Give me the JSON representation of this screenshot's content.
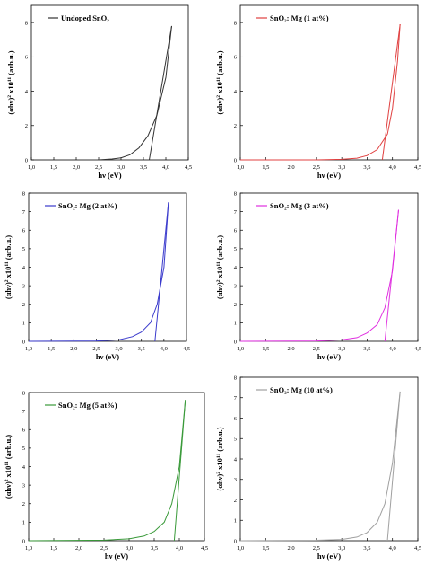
{
  "figure": {
    "ylabel_prefix": "(αhν)",
    "ylabel_sup1": "2",
    "ylabel_mid": " x10",
    "ylabel_sup2": "11",
    "ylabel_suffix": " (arb.u.)",
    "xlabel": "hν (eV)"
  },
  "chart_data": [
    {
      "type": "line",
      "legend": "Undoped SnO₂",
      "color": "#333333",
      "xlim": [
        1.0,
        4.5
      ],
      "ylim": [
        0,
        9
      ],
      "xticks": [
        "1,0",
        "1,5",
        "2,0",
        "2,5",
        "3,0",
        "3,5",
        "4,0",
        "4,5"
      ],
      "yticks": [
        "0",
        "2",
        "4",
        "6",
        "8"
      ],
      "curve": {
        "x": [
          2.5,
          2.8,
          3.0,
          3.2,
          3.4,
          3.6,
          3.8,
          4.0,
          4.13
        ],
        "y": [
          0.0,
          0.05,
          0.12,
          0.3,
          0.7,
          1.4,
          2.6,
          4.8,
          7.8
        ]
      },
      "fit": {
        "x": [
          3.63,
          4.13
        ],
        "y": [
          0.0,
          7.8
        ]
      }
    },
    {
      "type": "line",
      "legend": "SnO₂: Mg (1 at%)",
      "color": "#e04040",
      "xlim": [
        1.0,
        4.5
      ],
      "ylim": [
        0,
        9
      ],
      "xticks": [
        "1,0",
        "1,5",
        "2,0",
        "2,5",
        "3,0",
        "3,5",
        "4,0",
        "4,5"
      ],
      "yticks": [
        "0",
        "2",
        "4",
        "6",
        "8"
      ],
      "curve": {
        "x": [
          1.0,
          2.5,
          3.0,
          3.3,
          3.5,
          3.7,
          3.9,
          4.0,
          4.1,
          4.15
        ],
        "y": [
          0.0,
          0.0,
          0.03,
          0.1,
          0.25,
          0.6,
          1.5,
          3.0,
          5.8,
          7.9
        ]
      },
      "fit": {
        "x": [
          3.8,
          4.15
        ],
        "y": [
          0.0,
          7.9
        ]
      }
    },
    {
      "type": "line",
      "legend": "SnO₂: Mg (2 at%)",
      "color": "#3a3acc",
      "xlim": [
        1.0,
        4.5
      ],
      "ylim": [
        0,
        8
      ],
      "xticks": [
        "1,0",
        "1,5",
        "2,0",
        "2,5",
        "3,0",
        "3,5",
        "4,0",
        "4,5"
      ],
      "yticks": [
        "0",
        "1",
        "2",
        "3",
        "4",
        "5",
        "6",
        "7",
        "8"
      ],
      "curve": {
        "x": [
          1.0,
          2.5,
          3.0,
          3.3,
          3.5,
          3.7,
          3.85,
          4.0,
          4.1
        ],
        "y": [
          0.0,
          0.02,
          0.08,
          0.25,
          0.5,
          1.0,
          2.0,
          4.0,
          7.5
        ]
      },
      "fit": {
        "x": [
          3.8,
          4.1
        ],
        "y": [
          0.0,
          7.5
        ]
      }
    },
    {
      "type": "line",
      "legend": "SnO₂: Mg (3 at%)",
      "color": "#e030e0",
      "xlim": [
        1.0,
        4.5
      ],
      "ylim": [
        0,
        8
      ],
      "xticks": [
        "1,0",
        "1,5",
        "2,0",
        "2,5",
        "3,0",
        "3,5",
        "4,0",
        "4,5"
      ],
      "yticks": [
        "0",
        "1",
        "2",
        "3",
        "4",
        "5",
        "6",
        "7",
        "8"
      ],
      "curve": {
        "x": [
          1.0,
          2.5,
          3.0,
          3.3,
          3.5,
          3.7,
          3.85,
          4.0,
          4.12
        ],
        "y": [
          0.0,
          0.02,
          0.08,
          0.2,
          0.45,
          0.9,
          1.8,
          3.8,
          7.1
        ]
      },
      "fit": {
        "x": [
          3.85,
          4.12
        ],
        "y": [
          0.0,
          7.1
        ]
      }
    },
    {
      "type": "line",
      "legend": "SnO₂: Mg (5 at%)",
      "color": "#3a9a3a",
      "xlim": [
        1.0,
        4.5
      ],
      "ylim": [
        0,
        8
      ],
      "xticks": [
        "1,0",
        "1,5",
        "2,0",
        "2,5",
        "3,0",
        "3,5",
        "4,0",
        "4,5"
      ],
      "yticks": [
        "0",
        "1",
        "2",
        "3",
        "4",
        "5",
        "6",
        "7",
        "8"
      ],
      "curve": {
        "x": [
          1.0,
          2.5,
          3.0,
          3.3,
          3.5,
          3.7,
          3.85,
          4.0,
          4.12
        ],
        "y": [
          0.0,
          0.03,
          0.1,
          0.25,
          0.5,
          1.0,
          2.0,
          4.0,
          7.6
        ]
      },
      "fit": {
        "x": [
          3.9,
          4.12
        ],
        "y": [
          0.0,
          7.6
        ]
      }
    },
    {
      "type": "line",
      "legend": "SnO₂: Mg (10 at%)",
      "color": "#a0a0a0",
      "xlim": [
        1.0,
        4.5
      ],
      "ylim": [
        0,
        8
      ],
      "xticks": [
        "1,0",
        "1,5",
        "2,0",
        "2,5",
        "3,0",
        "3,5",
        "4,0",
        "4,5"
      ],
      "yticks": [
        "0",
        "1",
        "2",
        "3",
        "4",
        "5",
        "6",
        "7",
        "8"
      ],
      "curve": {
        "x": [
          1.0,
          2.5,
          3.0,
          3.3,
          3.5,
          3.7,
          3.85,
          4.0,
          4.15
        ],
        "y": [
          0.0,
          0.02,
          0.06,
          0.18,
          0.4,
          0.9,
          1.8,
          3.8,
          7.3
        ]
      },
      "fit": {
        "x": [
          3.9,
          4.15
        ],
        "y": [
          0.0,
          7.3
        ]
      }
    }
  ]
}
